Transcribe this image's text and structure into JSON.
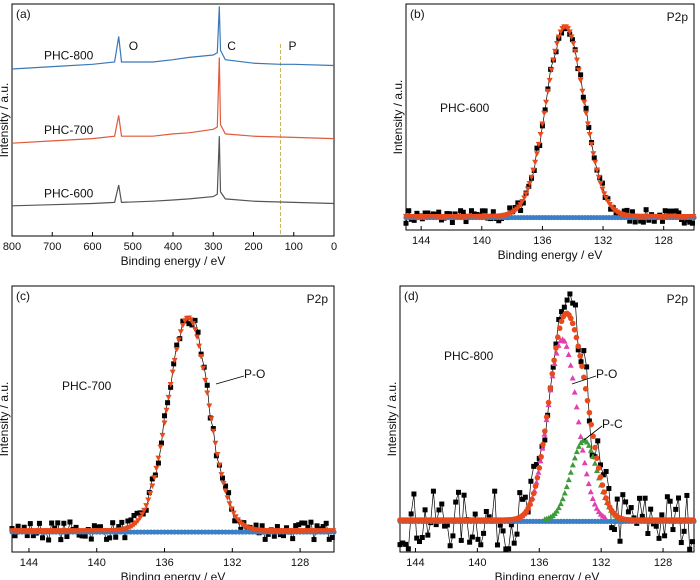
{
  "chart_data": [
    {
      "panel": "(a)",
      "type": "line",
      "xlabel": "Binding energy / eV",
      "ylabel": "Intensity / a.u.",
      "xlim": [
        800,
        0
      ],
      "x_reversed": true,
      "xticks": [
        800,
        700,
        600,
        500,
        400,
        300,
        200,
        100,
        0
      ],
      "peak_labels": [
        {
          "text": "O",
          "x": 510
        },
        {
          "text": "C",
          "x": 285
        },
        {
          "text": "P",
          "x": 133
        }
      ],
      "reference_line": {
        "x": 133,
        "style": "dashed",
        "color": "#c8b45a"
      },
      "series": [
        {
          "name": "PHC-800",
          "color": "#3a78b8",
          "points": [
            [
              800,
              0.72
            ],
            [
              700,
              0.73
            ],
            [
              600,
              0.74
            ],
            [
              545,
              0.75
            ],
            [
              535,
              0.86
            ],
            [
              528,
              0.75
            ],
            [
              450,
              0.75
            ],
            [
              400,
              0.76
            ],
            [
              360,
              0.77
            ],
            [
              300,
              0.78
            ],
            [
              290,
              0.79
            ],
            [
              285,
              0.99
            ],
            [
              282,
              0.8
            ],
            [
              270,
              0.76
            ],
            [
              200,
              0.745
            ],
            [
              133,
              0.74
            ],
            [
              100,
              0.74
            ],
            [
              0,
              0.735
            ]
          ]
        },
        {
          "name": "PHC-700",
          "color": "#e05a3c",
          "points": [
            [
              800,
              0.4
            ],
            [
              700,
              0.41
            ],
            [
              600,
              0.42
            ],
            [
              545,
              0.43
            ],
            [
              535,
              0.52
            ],
            [
              528,
              0.43
            ],
            [
              450,
              0.43
            ],
            [
              400,
              0.44
            ],
            [
              360,
              0.445
            ],
            [
              300,
              0.46
            ],
            [
              290,
              0.47
            ],
            [
              285,
              0.77
            ],
            [
              282,
              0.48
            ],
            [
              270,
              0.44
            ],
            [
              200,
              0.43
            ],
            [
              100,
              0.425
            ],
            [
              0,
              0.42
            ]
          ]
        },
        {
          "name": "PHC-600",
          "color": "#555555",
          "points": [
            [
              800,
              0.13
            ],
            [
              700,
              0.135
            ],
            [
              600,
              0.14
            ],
            [
              545,
              0.145
            ],
            [
              535,
              0.22
            ],
            [
              528,
              0.145
            ],
            [
              450,
              0.15
            ],
            [
              400,
              0.155
            ],
            [
              360,
              0.16
            ],
            [
              300,
              0.17
            ],
            [
              290,
              0.18
            ],
            [
              285,
              0.43
            ],
            [
              282,
              0.19
            ],
            [
              270,
              0.16
            ],
            [
              200,
              0.15
            ],
            [
              100,
              0.145
            ],
            [
              0,
              0.14
            ]
          ]
        }
      ]
    },
    {
      "panel": "(b)",
      "type": "scatter",
      "corner_label": "P2p",
      "sample_label": "PHC-600",
      "xlabel": "Binding energy / eV",
      "ylabel": "Intensity / a.u.",
      "xlim": [
        145,
        126
      ],
      "x_reversed": true,
      "xticks": [
        144,
        140,
        136,
        132,
        128
      ],
      "peaks": [
        {
          "center": 134.5,
          "height": 0.84,
          "width": 1.25
        }
      ],
      "baseline": 0.06,
      "noise": 0.03,
      "colors": {
        "raw": "#000000",
        "fit": "#e84a1c",
        "component": "#e84a1c",
        "background": "#3a80c8"
      }
    },
    {
      "panel": "(c)",
      "type": "scatter",
      "corner_label": "P2p",
      "sample_label": "PHC-700",
      "component_labels": [
        "P-O"
      ],
      "xlabel": "Binding energy / eV",
      "ylabel": "Intensity / a.u.",
      "xlim": [
        145,
        126
      ],
      "x_reversed": true,
      "xticks": [
        144,
        140,
        136,
        132,
        128
      ],
      "peaks": [
        {
          "center": 134.6,
          "height": 0.8,
          "width": 1.2
        }
      ],
      "baseline": 0.08,
      "noise": 0.035,
      "colors": {
        "raw": "#000000",
        "fit": "#e84a1c",
        "component": "#e84a1c",
        "background": "#3a80c8"
      }
    },
    {
      "panel": "(d)",
      "type": "scatter",
      "corner_label": "P2p",
      "sample_label": "PHC-800",
      "component_labels": [
        "P-O",
        "P-C"
      ],
      "xlabel": "Binding energy / eV",
      "ylabel": "Intensity / a.u.",
      "xlim": [
        145,
        126
      ],
      "x_reversed": true,
      "xticks": [
        144,
        140,
        136,
        132,
        128
      ],
      "peaks": [
        {
          "center": 134.5,
          "height": 0.68,
          "width": 0.95,
          "color": "#e040b0"
        },
        {
          "center": 133.1,
          "height": 0.3,
          "width": 0.85,
          "color": "#3f9a3c"
        }
      ],
      "baseline": 0.12,
      "noise": 0.11,
      "colors": {
        "raw": "#000000",
        "fit": "#e84a1c",
        "background": "#3a80c8"
      }
    }
  ]
}
